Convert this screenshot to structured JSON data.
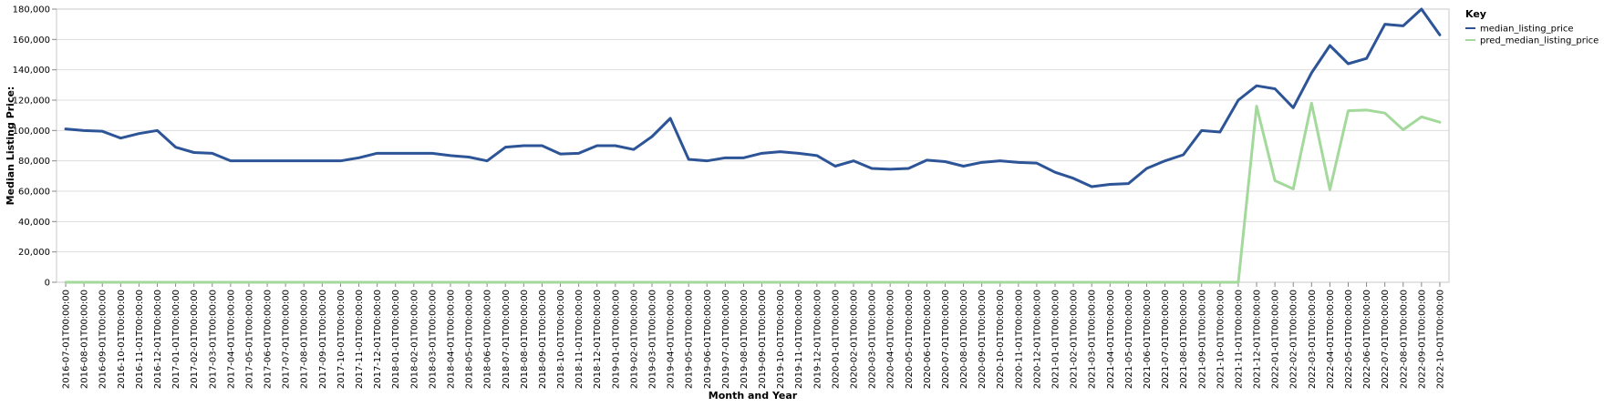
{
  "chart_data": {
    "type": "line",
    "title": "",
    "xlabel": "Month and Year",
    "ylabel": "Median Listing Price:",
    "ylim": [
      0,
      180000
    ],
    "y_ticks": [
      0,
      20000,
      40000,
      60000,
      80000,
      100000,
      120000,
      140000,
      160000,
      180000
    ],
    "y_tick_labels": [
      "0",
      "20,000",
      "40,000",
      "60,000",
      "80,000",
      "100,000",
      "120,000",
      "140,000",
      "160,000",
      "180,000"
    ],
    "grid": true,
    "legend": {
      "title": "Key",
      "position": "top-right"
    },
    "x": [
      "2016-07-01T00:00:00",
      "2016-08-01T00:00:00",
      "2016-09-01T00:00:00",
      "2016-10-01T00:00:00",
      "2016-11-01T00:00:00",
      "2016-12-01T00:00:00",
      "2017-01-01T00:00:00",
      "2017-02-01T00:00:00",
      "2017-03-01T00:00:00",
      "2017-04-01T00:00:00",
      "2017-05-01T00:00:00",
      "2017-06-01T00:00:00",
      "2017-07-01T00:00:00",
      "2017-08-01T00:00:00",
      "2017-09-01T00:00:00",
      "2017-10-01T00:00:00",
      "2017-11-01T00:00:00",
      "2017-12-01T00:00:00",
      "2018-01-01T00:00:00",
      "2018-02-01T00:00:00",
      "2018-03-01T00:00:00",
      "2018-04-01T00:00:00",
      "2018-05-01T00:00:00",
      "2018-06-01T00:00:00",
      "2018-07-01T00:00:00",
      "2018-08-01T00:00:00",
      "2018-09-01T00:00:00",
      "2018-10-01T00:00:00",
      "2018-11-01T00:00:00",
      "2018-12-01T00:00:00",
      "2019-01-01T00:00:00",
      "2019-02-01T00:00:00",
      "2019-03-01T00:00:00",
      "2019-04-01T00:00:00",
      "2019-05-01T00:00:00",
      "2019-06-01T00:00:00",
      "2019-07-01T00:00:00",
      "2019-08-01T00:00:00",
      "2019-09-01T00:00:00",
      "2019-10-01T00:00:00",
      "2019-11-01T00:00:00",
      "2019-12-01T00:00:00",
      "2020-01-01T00:00:00",
      "2020-02-01T00:00:00",
      "2020-03-01T00:00:00",
      "2020-04-01T00:00:00",
      "2020-05-01T00:00:00",
      "2020-06-01T00:00:00",
      "2020-07-01T00:00:00",
      "2020-08-01T00:00:00",
      "2020-09-01T00:00:00",
      "2020-10-01T00:00:00",
      "2020-11-01T00:00:00",
      "2020-12-01T00:00:00",
      "2021-01-01T00:00:00",
      "2021-02-01T00:00:00",
      "2021-03-01T00:00:00",
      "2021-04-01T00:00:00",
      "2021-05-01T00:00:00",
      "2021-06-01T00:00:00",
      "2021-07-01T00:00:00",
      "2021-08-01T00:00:00",
      "2021-09-01T00:00:00",
      "2021-10-01T00:00:00",
      "2021-11-01T00:00:00",
      "2021-12-01T00:00:00",
      "2022-01-01T00:00:00",
      "2022-02-01T00:00:00",
      "2022-03-01T00:00:00",
      "2022-04-01T00:00:00",
      "2022-05-01T00:00:00",
      "2022-06-01T00:00:00",
      "2022-07-01T00:00:00",
      "2022-08-01T00:00:00",
      "2022-09-01T00:00:00",
      "2022-10-01T00:00:00"
    ],
    "series": [
      {
        "name": "median_listing_price",
        "color": "#2c5496",
        "values": [
          101000,
          100000,
          99500,
          95000,
          98000,
          100000,
          89000,
          85500,
          85000,
          80000,
          80000,
          80000,
          80000,
          80000,
          80000,
          80000,
          82000,
          85000,
          85000,
          85000,
          85000,
          83500,
          82500,
          80000,
          89000,
          90000,
          90000,
          84500,
          85000,
          90000,
          90000,
          87500,
          96000,
          108000,
          81000,
          80000,
          82000,
          82000,
          85000,
          86000,
          85000,
          83500,
          76500,
          80000,
          75000,
          74500,
          75000,
          80500,
          79500,
          76500,
          79000,
          80000,
          79000,
          78500,
          72500,
          68500,
          63000,
          64500,
          65000,
          75000,
          80000,
          84000,
          100000,
          99000,
          120000,
          129500,
          127500,
          115000,
          138000,
          156000,
          144000,
          147500,
          170000,
          169000,
          180000,
          163000
        ]
      },
      {
        "name": "pred_median_listing_price",
        "color": "#a3d99b",
        "values": [
          0,
          0,
          0,
          0,
          0,
          0,
          0,
          0,
          0,
          0,
          0,
          0,
          0,
          0,
          0,
          0,
          0,
          0,
          0,
          0,
          0,
          0,
          0,
          0,
          0,
          0,
          0,
          0,
          0,
          0,
          0,
          0,
          0,
          0,
          0,
          0,
          0,
          0,
          0,
          0,
          0,
          0,
          0,
          0,
          0,
          0,
          0,
          0,
          0,
          0,
          0,
          0,
          0,
          0,
          0,
          0,
          0,
          0,
          0,
          0,
          0,
          0,
          0,
          0,
          0,
          116000,
          67000,
          61500,
          118000,
          61000,
          113000,
          113500,
          111500,
          100500,
          109000,
          105500
        ]
      }
    ]
  }
}
